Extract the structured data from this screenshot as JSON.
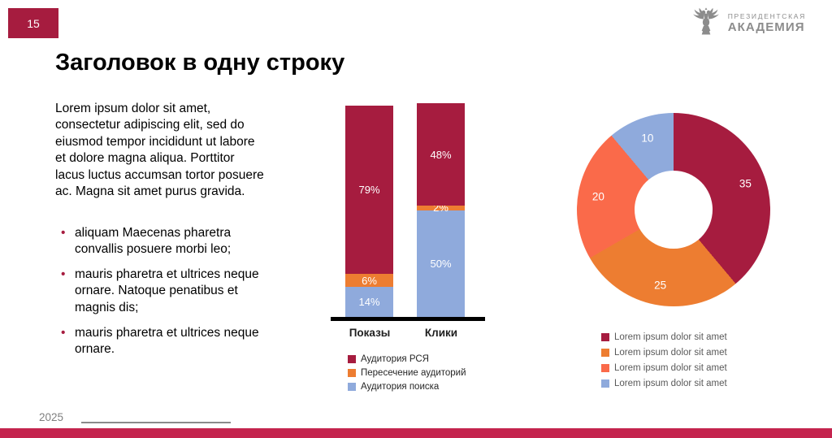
{
  "slide": {
    "page_number": "15",
    "title": "Заголовок в одну строку",
    "year": "2025"
  },
  "logo": {
    "line1": "ПРЕЗИДЕНТСКАЯ",
    "line2": "АКАДЕМИЯ"
  },
  "body": {
    "paragraph": "Lorem ipsum dolor sit amet, consectetur adipiscing elit, sed do eiusmod tempor incididunt ut labore et dolore magna aliqua. Porttitor lacus luctus accumsan tortor posuere ac. Magna sit amet purus gravida.",
    "bullets": [
      "aliquam Maecenas pharetra convallis posuere morbi leo;",
      "mauris pharetra et ultrices neque ornare. Natoque penatibus et magnis dis;",
      "mauris pharetra et ultrices neque ornare."
    ]
  },
  "colors": {
    "crimson": "#A61C3F",
    "orange": "#ED7D31",
    "tomato": "#FA6A4A",
    "bluegray": "#8FAADC",
    "bottom_strip": "#C4244E",
    "logo_gray": "#8C8C8C"
  },
  "chart_data": [
    {
      "type": "bar",
      "subtype": "stacked-100-percent",
      "categories": [
        "Показы",
        "Клики"
      ],
      "series": [
        {
          "name": "Аудитория поиска",
          "color": "#8FAADC",
          "values": [
            14,
            50
          ]
        },
        {
          "name": "Пересечение аудиторий",
          "color": "#ED7D31",
          "values": [
            6,
            2
          ]
        },
        {
          "name": "Аудитория РСЯ",
          "color": "#A61C3F",
          "values": [
            79,
            48
          ]
        }
      ],
      "value_suffix": "%",
      "ylim": [
        0,
        100
      ],
      "grid": false,
      "legend_position": "bottom-left",
      "legend": [
        {
          "label": "Аудитория РСЯ",
          "color": "#A61C3F"
        },
        {
          "label": "Пересечение аудиторий",
          "color": "#ED7D31"
        },
        {
          "label": "Аудитория поиска",
          "color": "#8FAADC"
        }
      ]
    },
    {
      "type": "pie",
      "subtype": "donut",
      "start_angle_deg": 0,
      "direction": "clockwise",
      "slices": [
        {
          "label": "Lorem ipsum dolor sit amet",
          "value": 35,
          "color": "#A61C3F"
        },
        {
          "label": "Lorem ipsum dolor sit amet",
          "value": 25,
          "color": "#ED7D31"
        },
        {
          "label": "Lorem ipsum dolor sit amet",
          "value": 20,
          "color": "#FA6A4A"
        },
        {
          "label": "Lorem ipsum dolor sit amet",
          "value": 10,
          "color": "#8FAADC"
        }
      ],
      "legend_position": "bottom-right"
    }
  ]
}
